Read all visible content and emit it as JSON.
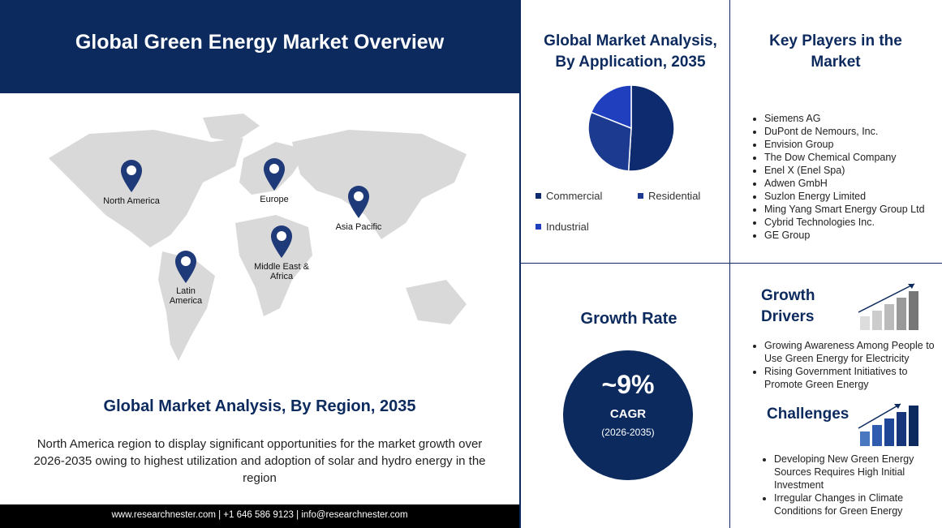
{
  "header": {
    "title": "Global Green Energy Market Overview"
  },
  "map": {
    "regions": [
      "North America",
      "Europe",
      "Asia Pacific",
      "Middle East & Africa",
      "Latin America"
    ]
  },
  "region_section": {
    "title": "Global Market Analysis, By Region, 2035",
    "description": "North America region to display significant opportunities for the market growth over 2026-2035 owing to highest utilization and adoption of solar and hydro energy in the region"
  },
  "footer": {
    "contact": "www.researchnester.com | +1 646 586 9123 | info@researchnester.com"
  },
  "chart_data": {
    "type": "pie",
    "title": "Global Market Analysis, By Application, 2035",
    "categories": [
      "Commercial",
      "Residential",
      "Industrial"
    ],
    "values": [
      51,
      30,
      19
    ],
    "colors": [
      "#0d2b6e",
      "#1c3a8f",
      "#1f3fbf"
    ]
  },
  "key_players": {
    "title": "Key Players in the Market",
    "items": [
      "Siemens AG",
      "DuPont de Nemours, Inc.",
      "Envision Group",
      "The Dow Chemical Company",
      "Enel X (Enel Spa)",
      "Adwen GmbH",
      "Suzlon Energy Limited",
      "Ming Yang Smart Energy Group Ltd",
      "Cybrid Technologies Inc.",
      "GE Group"
    ]
  },
  "growth_rate": {
    "title": "Growth Rate",
    "value": "~9%",
    "label": "CAGR",
    "period": "(2026-2035)"
  },
  "growth_drivers": {
    "title": "Growth Drivers",
    "items": [
      "Growing Awareness Among People to Use Green Energy for Electricity",
      "Rising Government Initiatives to Promote Green Energy"
    ]
  },
  "challenges": {
    "title": "Challenges",
    "items": [
      "Developing New Green Energy Sources Requires High Initial Investment",
      "Irregular Changes in Climate Conditions for Green Energy"
    ]
  }
}
